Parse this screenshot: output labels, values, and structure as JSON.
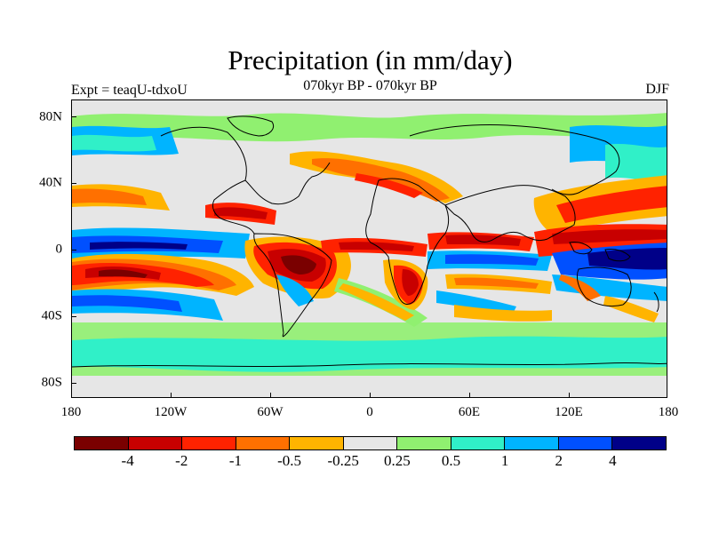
{
  "title": "Precipitation (in mm/day)",
  "subtitle": "070kyr BP - 070kyr BP",
  "left_label": "Expt = teaqU-tdxoU",
  "right_label": "DJF",
  "map": {
    "lat_ticks": [
      "80N",
      "40N",
      "0",
      "40S",
      "80S"
    ],
    "lon_ticks": [
      "180",
      "120W",
      "60W",
      "0",
      "60E",
      "120E",
      "180"
    ]
  },
  "colorbar": {
    "colors": [
      "#7a0000",
      "#c80000",
      "#ff2200",
      "#ff7000",
      "#ffb400",
      "#e6e6e6",
      "#90f070",
      "#30f0c8",
      "#00b4ff",
      "#0050ff",
      "#000088"
    ],
    "labels": [
      "-4",
      "-2",
      "-1",
      "-0.5",
      "-0.25",
      "0.25",
      "0.5",
      "1",
      "2",
      "4"
    ]
  }
}
